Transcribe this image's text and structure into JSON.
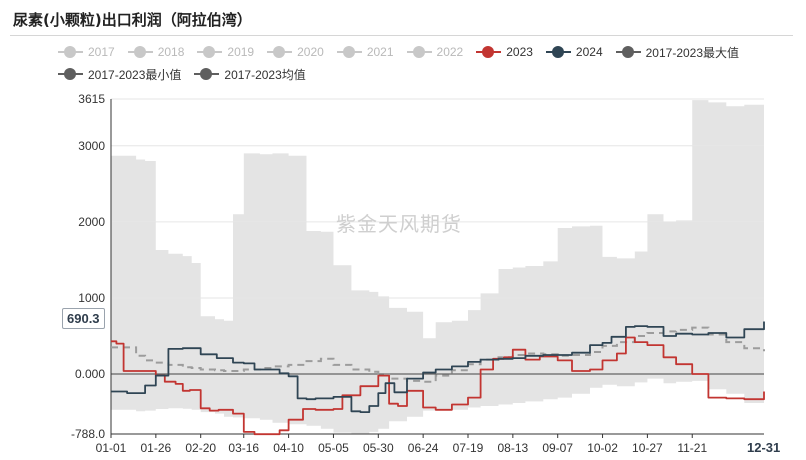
{
  "header": {
    "title": "尿素(小颗粒)出口利润（阿拉伯湾）"
  },
  "watermark": "紫金天风期货",
  "last_value_label": "690.3",
  "x_end_label": "12-31",
  "legend": {
    "rows": [
      [
        {
          "label": "2017",
          "color": "#c8c8c8",
          "active": false
        },
        {
          "label": "2018",
          "color": "#c8c8c8",
          "active": false
        },
        {
          "label": "2019",
          "color": "#c8c8c8",
          "active": false
        },
        {
          "label": "2020",
          "color": "#c8c8c8",
          "active": false
        },
        {
          "label": "2021",
          "color": "#c8c8c8",
          "active": false
        },
        {
          "label": "2022",
          "color": "#c8c8c8",
          "active": false
        },
        {
          "label": "2023",
          "color": "#c23531",
          "active": true
        },
        {
          "label": "2024",
          "color": "#2f4554",
          "active": true
        },
        {
          "label": "2017-2023最大值",
          "color": "#5f5f5f",
          "active": true
        }
      ],
      [
        {
          "label": "2017-2023最小值",
          "color": "#5f5f5f",
          "active": true
        },
        {
          "label": "2017-2023均值",
          "color": "#5f5f5f",
          "active": true
        }
      ]
    ]
  },
  "chart_data": {
    "type": "line",
    "x_tick_labels": [
      "01-01",
      "01-26",
      "02-20",
      "03-16",
      "04-10",
      "05-05",
      "05-30",
      "06-24",
      "07-19",
      "08-13",
      "09-07",
      "10-02",
      "10-27",
      "11-21"
    ],
    "y_tick_labels": [
      "3615",
      "3000",
      "2000",
      "1000",
      "0.000",
      "-788.0"
    ],
    "ylim": [
      -788.0,
      3615
    ],
    "grid": "horizontal",
    "legend_position": "top",
    "colors": {
      "range_band": "#e4e4e4",
      "2023": "#c23531",
      "2024": "#2f4554",
      "mean": "#9c9c9c"
    },
    "range_band": {
      "x": [
        "01-01",
        "01-15",
        "01-20",
        "01-26",
        "02-02",
        "02-10",
        "02-15",
        "02-20",
        "02-28",
        "03-05",
        "03-10",
        "03-16",
        "03-25",
        "04-01",
        "04-10",
        "04-20",
        "04-28",
        "05-05",
        "05-15",
        "05-25",
        "05-30",
        "06-05",
        "06-15",
        "06-24",
        "07-01",
        "07-10",
        "07-19",
        "07-26",
        "08-05",
        "08-13",
        "08-20",
        "08-30",
        "09-07",
        "09-15",
        "09-25",
        "10-02",
        "10-10",
        "10-20",
        "10-27",
        "11-05",
        "11-12",
        "11-21",
        "11-30",
        "12-10",
        "12-20",
        "12-31"
      ],
      "max": [
        2870,
        2820,
        2800,
        1630,
        1580,
        1550,
        1460,
        760,
        720,
        700,
        2100,
        2900,
        2890,
        2900,
        2870,
        1880,
        1870,
        1430,
        1100,
        1080,
        1020,
        870,
        820,
        470,
        680,
        700,
        840,
        1060,
        1380,
        1400,
        1420,
        1480,
        1920,
        1940,
        1950,
        1540,
        1520,
        1610,
        2100,
        2000,
        2020,
        3600,
        3570,
        3520,
        3540,
        2910
      ],
      "min": [
        -470,
        -490,
        -480,
        -460,
        -450,
        -455,
        -470,
        -500,
        -520,
        -560,
        -570,
        -580,
        -600,
        -640,
        -660,
        -680,
        -720,
        -770,
        -788,
        -760,
        -720,
        -620,
        -560,
        -480,
        -460,
        -470,
        -440,
        -420,
        -400,
        -380,
        -360,
        -330,
        -310,
        -260,
        -180,
        -140,
        -160,
        -110,
        -60,
        -120,
        -100,
        -90,
        -200,
        -260,
        -380,
        -460
      ],
      "mean": [
        350,
        240,
        180,
        150,
        120,
        90,
        80,
        60,
        50,
        40,
        40,
        60,
        80,
        100,
        120,
        170,
        200,
        120,
        60,
        30,
        0,
        -60,
        -90,
        -100,
        -20,
        50,
        130,
        190,
        220,
        250,
        270,
        260,
        240,
        250,
        290,
        370,
        420,
        500,
        540,
        560,
        580,
        610,
        520,
        420,
        340,
        300
      ]
    },
    "series": [
      {
        "name": "2023",
        "x": [
          "01-01",
          "01-04",
          "01-08",
          "01-26",
          "01-31",
          "02-06",
          "02-10",
          "02-14",
          "02-20",
          "02-25",
          "03-02",
          "03-10",
          "03-16",
          "03-22",
          "03-30",
          "04-05",
          "04-10",
          "04-18",
          "04-25",
          "05-05",
          "05-10",
          "05-20",
          "05-30",
          "06-05",
          "06-10",
          "06-15",
          "06-24",
          "07-01",
          "07-10",
          "07-19",
          "07-26",
          "08-02",
          "08-08",
          "08-13",
          "08-20",
          "08-28",
          "09-07",
          "09-15",
          "09-25",
          "10-02",
          "10-10",
          "10-15",
          "10-20",
          "10-27",
          "11-05",
          "11-12",
          "11-21",
          "11-30",
          "12-10",
          "12-20",
          "12-31"
        ],
        "values": [
          430,
          400,
          40,
          -20,
          -100,
          -130,
          -220,
          -210,
          -450,
          -480,
          -470,
          -520,
          -760,
          -790,
          -790,
          -740,
          -600,
          -460,
          -470,
          -460,
          -280,
          -160,
          -20,
          -390,
          -420,
          -220,
          -440,
          -470,
          -400,
          -310,
          60,
          200,
          220,
          320,
          190,
          230,
          180,
          40,
          60,
          180,
          270,
          480,
          420,
          380,
          220,
          130,
          0,
          -310,
          -320,
          -330,
          -230
        ]
      },
      {
        "name": "2024",
        "x": [
          "01-01",
          "01-10",
          "01-20",
          "01-26",
          "02-02",
          "02-10",
          "02-20",
          "03-01",
          "03-10",
          "03-16",
          "03-22",
          "04-01",
          "04-05",
          "04-10",
          "04-15",
          "04-20",
          "04-25",
          "05-05",
          "05-15",
          "05-20",
          "05-25",
          "05-30",
          "06-03",
          "06-08",
          "06-15",
          "06-24",
          "07-01",
          "07-10",
          "07-19",
          "07-26",
          "08-05",
          "08-13",
          "08-20",
          "08-30",
          "09-07",
          "09-15",
          "09-25",
          "10-02",
          "10-07",
          "10-15",
          "10-20",
          "10-27",
          "11-05",
          "11-12",
          "11-21",
          "11-30",
          "12-10",
          "12-20",
          "12-31"
        ],
        "values": [
          -230,
          -250,
          -150,
          -20,
          330,
          340,
          260,
          210,
          150,
          140,
          60,
          60,
          10,
          -30,
          -320,
          -330,
          -320,
          -300,
          -490,
          -500,
          -420,
          -250,
          -120,
          -240,
          -60,
          20,
          60,
          100,
          160,
          190,
          200,
          210,
          240,
          250,
          250,
          280,
          380,
          410,
          490,
          620,
          630,
          620,
          500,
          530,
          520,
          540,
          480,
          590,
          690.3
        ]
      }
    ]
  }
}
